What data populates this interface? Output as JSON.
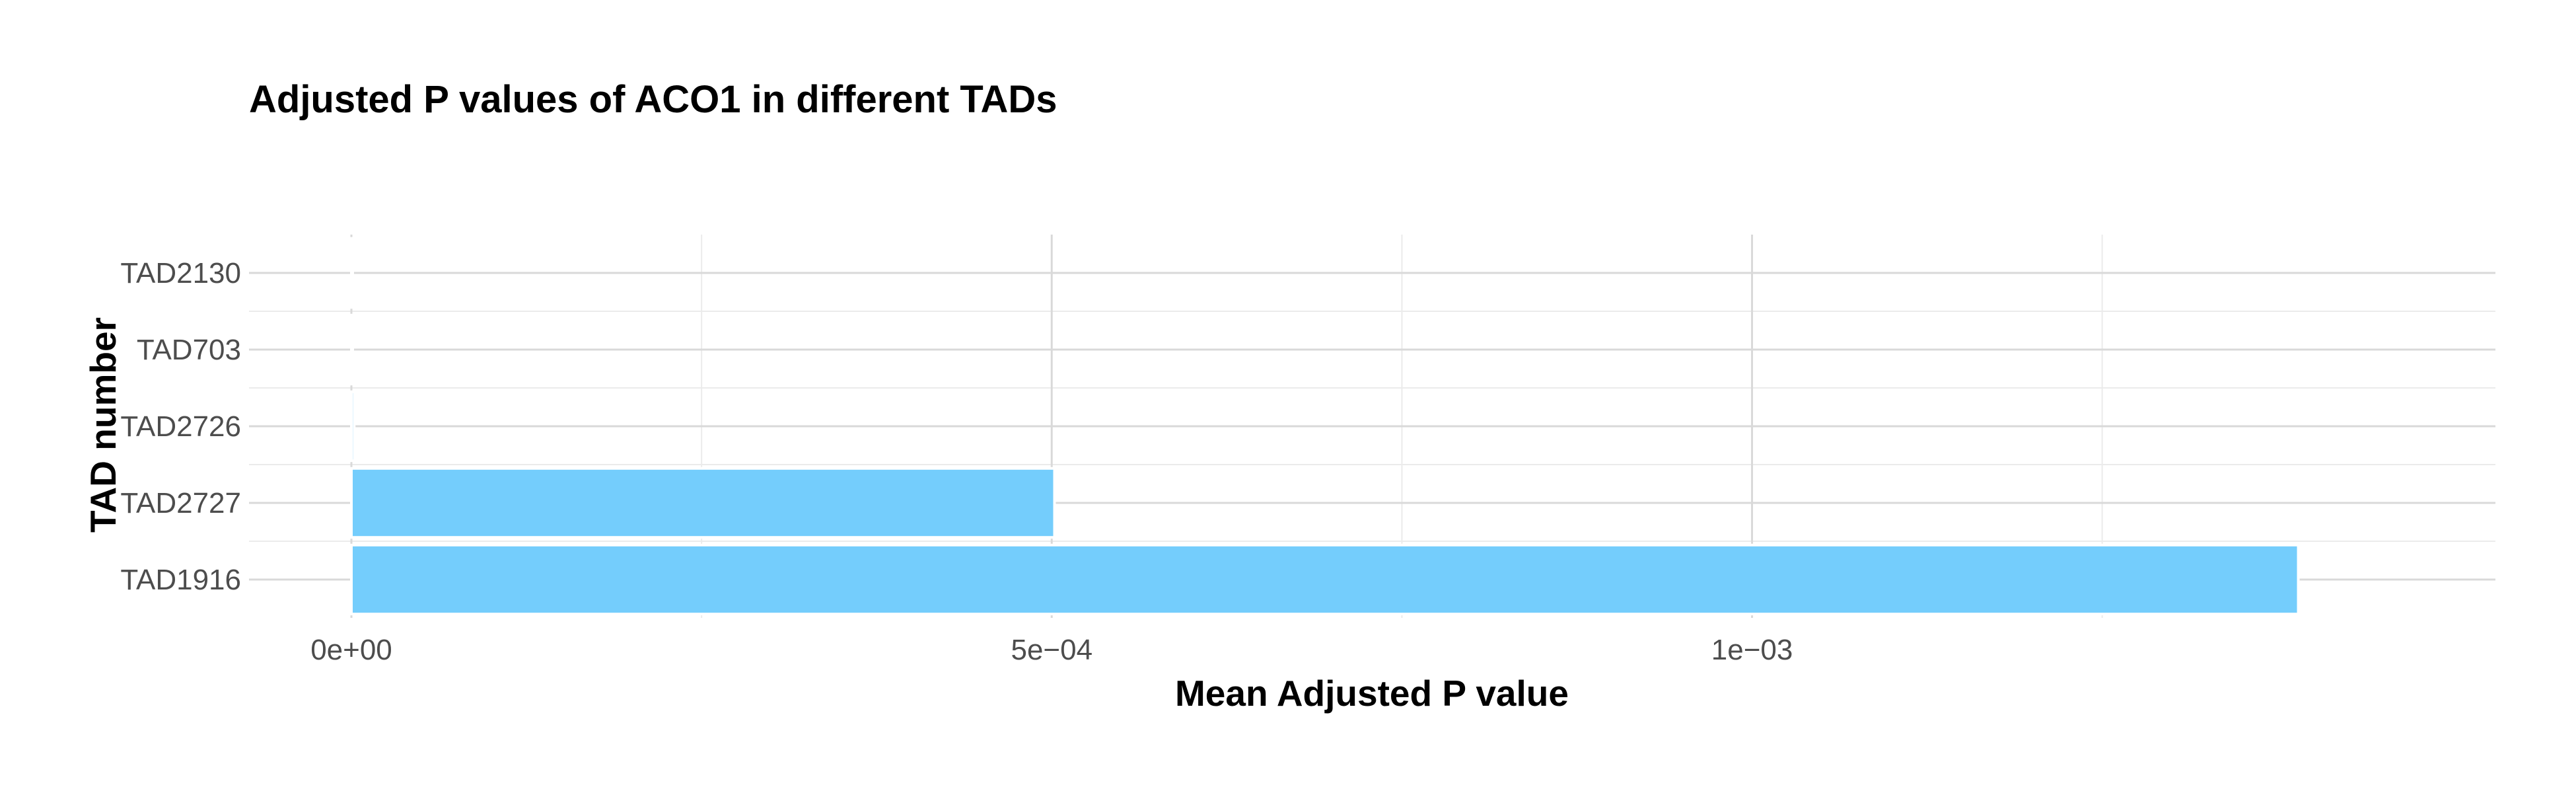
{
  "chart_data": {
    "type": "bar",
    "orientation": "horizontal",
    "title": "Adjusted P values of ACO1 in different TADs",
    "xlabel": "Mean Adjusted P value",
    "ylabel": "TAD number",
    "categories": [
      "TAD2130",
      "TAD703",
      "TAD2726",
      "TAD2727",
      "TAD1916"
    ],
    "values": [
      5e-07,
      5e-07,
      2e-06,
      0.000502,
      0.00139
    ],
    "xlim": [
      0,
      0.00146
    ],
    "x_ticks": [
      {
        "value": 0,
        "label": "0e+00"
      },
      {
        "value": 0.0005,
        "label": "5e−04"
      },
      {
        "value": 0.001,
        "label": "1e−03"
      }
    ],
    "x_minor_ticks": [
      0.00025,
      0.00075,
      0.00125
    ],
    "bar_color": "#74cdfc",
    "grid": true,
    "legend": "none"
  }
}
